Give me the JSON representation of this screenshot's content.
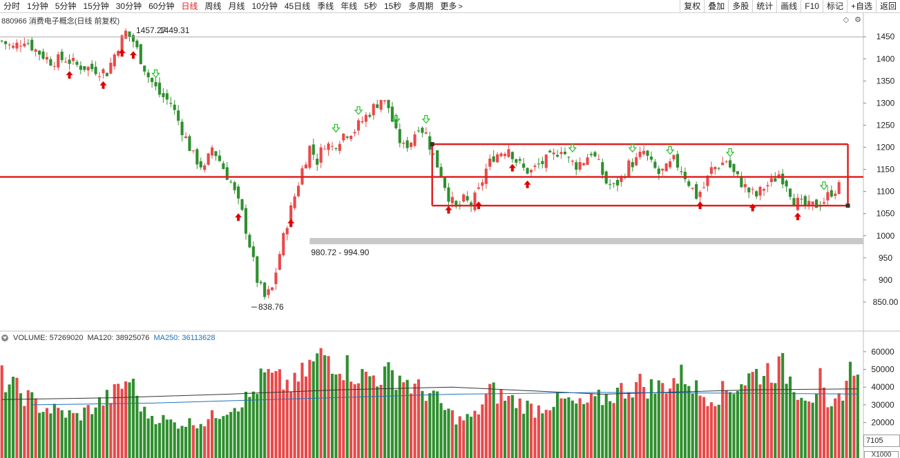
{
  "toolbar": {
    "periods": [
      {
        "label": "分时"
      },
      {
        "label": "1分钟"
      },
      {
        "label": "5分钟"
      },
      {
        "label": "15分钟"
      },
      {
        "label": "30分钟"
      },
      {
        "label": "60分钟"
      },
      {
        "label": "日线"
      },
      {
        "label": "周线"
      },
      {
        "label": "月线"
      },
      {
        "label": "10分钟"
      },
      {
        "label": "45日线"
      },
      {
        "label": "季线"
      },
      {
        "label": "年线"
      },
      {
        "label": "5秒"
      },
      {
        "label": "15秒"
      },
      {
        "label": "多周期"
      },
      {
        "label": "更多"
      }
    ],
    "active_period": "日线",
    "buttons": [
      "复权",
      "叠加",
      "多股",
      "统计",
      "画线",
      "F10",
      "标记",
      "+自选",
      "返回"
    ]
  },
  "price_panel": {
    "title": "880966 消费电子概念(日线 前复权)",
    "high_label": "1457.27",
    "high_label2": "1449.31",
    "low_label": "838.76",
    "gap_label": "980.72 - 994.90"
  },
  "volume_panel": {
    "volume_text": "VOLUME: 57269020",
    "ma120_text": "MA120: 38925076",
    "ma250_text": "MA250: 36113628",
    "readout": "7105",
    "unit": "X1000"
  },
  "colors": {
    "up": "#e84a4a",
    "down": "#2f8f2f",
    "trendline": "#e02020",
    "ma120": "#333333",
    "ma250": "#1f70b8",
    "gap_band": "#c8c8c8"
  },
  "chart_data": {
    "type": "candlestick",
    "price_axis": {
      "min": 800,
      "max": 1480,
      "ticks": [
        1450,
        1400,
        1350,
        1300,
        1250,
        1200,
        1150,
        1100,
        1050,
        1000,
        950,
        900,
        850
      ],
      "tick_labels": [
        "1450",
        "1400",
        "1350",
        "1300",
        "1250",
        "1200",
        "1150",
        "1100",
        "1050",
        "1000",
        "950",
        "900",
        "850.00"
      ]
    },
    "volume_axis": {
      "min": 0,
      "max": 65000,
      "ticks": [
        20000,
        30000,
        40000,
        50000,
        60000
      ],
      "tick_labels": [
        "20000",
        "30000",
        "40000",
        "50000",
        "60000"
      ]
    },
    "close_path": [
      [
        0,
        1440
      ],
      [
        3,
        1425
      ],
      [
        6,
        1445
      ],
      [
        9,
        1420
      ],
      [
        13,
        1395
      ],
      [
        17,
        1400
      ],
      [
        20,
        1385
      ],
      [
        24,
        1378
      ],
      [
        28,
        1370
      ],
      [
        31,
        1430
      ],
      [
        33,
        1460
      ],
      [
        35,
        1440
      ],
      [
        37,
        1400
      ],
      [
        39,
        1360
      ],
      [
        42,
        1320
      ],
      [
        45,
        1300
      ],
      [
        48,
        1240
      ],
      [
        51,
        1180
      ],
      [
        54,
        1150
      ],
      [
        56,
        1200
      ],
      [
        58,
        1170
      ],
      [
        61,
        1120
      ],
      [
        64,
        1050
      ],
      [
        66,
        980
      ],
      [
        68,
        900
      ],
      [
        70,
        860
      ],
      [
        72,
        880
      ],
      [
        74,
        960
      ],
      [
        76,
        1030
      ],
      [
        78,
        1090
      ],
      [
        80,
        1150
      ],
      [
        82,
        1200
      ],
      [
        84,
        1170
      ],
      [
        86,
        1210
      ],
      [
        88,
        1200
      ],
      [
        91,
        1230
      ],
      [
        94,
        1240
      ],
      [
        97,
        1270
      ],
      [
        99,
        1290
      ],
      [
        101,
        1310
      ],
      [
        103,
        1290
      ],
      [
        105,
        1230
      ],
      [
        107,
        1200
      ],
      [
        109,
        1215
      ],
      [
        111,
        1250
      ],
      [
        113,
        1230
      ],
      [
        115,
        1180
      ],
      [
        117,
        1140
      ],
      [
        119,
        1090
      ],
      [
        121,
        1060
      ],
      [
        123,
        1080
      ],
      [
        125,
        1070
      ],
      [
        127,
        1100
      ],
      [
        129,
        1150
      ],
      [
        131,
        1180
      ],
      [
        133,
        1190
      ],
      [
        135,
        1200
      ],
      [
        137,
        1170
      ],
      [
        139,
        1150
      ],
      [
        141,
        1145
      ],
      [
        143,
        1160
      ],
      [
        145,
        1170
      ],
      [
        147,
        1180
      ],
      [
        149,
        1200
      ],
      [
        151,
        1170
      ],
      [
        153,
        1160
      ],
      [
        155,
        1170
      ],
      [
        157,
        1190
      ],
      [
        159,
        1160
      ],
      [
        161,
        1120
      ],
      [
        163,
        1110
      ],
      [
        165,
        1130
      ],
      [
        167,
        1160
      ],
      [
        169,
        1170
      ],
      [
        171,
        1190
      ],
      [
        173,
        1160
      ],
      [
        175,
        1140
      ],
      [
        177,
        1150
      ],
      [
        179,
        1170
      ],
      [
        181,
        1150
      ],
      [
        183,
        1120
      ],
      [
        185,
        1090
      ],
      [
        187,
        1110
      ],
      [
        189,
        1150
      ],
      [
        191,
        1160
      ],
      [
        193,
        1170
      ],
      [
        195,
        1140
      ],
      [
        197,
        1120
      ],
      [
        199,
        1100
      ],
      [
        201,
        1090
      ],
      [
        203,
        1110
      ],
      [
        205,
        1120
      ],
      [
        207,
        1140
      ],
      [
        209,
        1120
      ],
      [
        211,
        1080
      ],
      [
        213,
        1070
      ],
      [
        215,
        1065
      ],
      [
        217,
        1070
      ],
      [
        219,
        1080
      ],
      [
        221,
        1100
      ],
      [
        223,
        1110
      ]
    ],
    "volume_path": [
      [
        0,
        46000
      ],
      [
        10,
        30000
      ],
      [
        20,
        24000
      ],
      [
        30,
        37000
      ],
      [
        34,
        46000
      ],
      [
        38,
        26000
      ],
      [
        46,
        20000
      ],
      [
        54,
        21000
      ],
      [
        60,
        29000
      ],
      [
        66,
        35000
      ],
      [
        70,
        48000
      ],
      [
        74,
        44000
      ],
      [
        78,
        42000
      ],
      [
        82,
        53000
      ],
      [
        86,
        60000
      ],
      [
        90,
        55000
      ],
      [
        96,
        47000
      ],
      [
        102,
        48000
      ],
      [
        106,
        48000
      ],
      [
        110,
        40000
      ],
      [
        114,
        38000
      ],
      [
        118,
        28000
      ],
      [
        122,
        22000
      ],
      [
        126,
        24000
      ],
      [
        130,
        39000
      ],
      [
        134,
        35000
      ],
      [
        138,
        32000
      ],
      [
        142,
        28000
      ],
      [
        146,
        32000
      ],
      [
        150,
        33000
      ],
      [
        154,
        30000
      ],
      [
        158,
        33000
      ],
      [
        162,
        36000
      ],
      [
        166,
        40000
      ],
      [
        170,
        43000
      ],
      [
        174,
        40000
      ],
      [
        178,
        44000
      ],
      [
        182,
        48000
      ],
      [
        186,
        37000
      ],
      [
        190,
        36000
      ],
      [
        194,
        40000
      ],
      [
        200,
        48000
      ],
      [
        204,
        51000
      ],
      [
        208,
        52000
      ],
      [
        212,
        40000
      ],
      [
        216,
        36000
      ],
      [
        218,
        45000
      ],
      [
        220,
        25000
      ],
      [
        222,
        30000
      ],
      [
        226,
        50000
      ],
      [
        228,
        57000
      ]
    ],
    "ma120": [
      [
        0,
        33000
      ],
      [
        30,
        34000
      ],
      [
        60,
        36000
      ],
      [
        90,
        38500
      ],
      [
        120,
        40000
      ],
      [
        160,
        36000
      ],
      [
        200,
        38500
      ],
      [
        228,
        39000
      ]
    ],
    "ma250": [
      [
        8,
        30000
      ],
      [
        40,
        31000
      ],
      [
        80,
        33500
      ],
      [
        120,
        36000
      ],
      [
        160,
        37000
      ],
      [
        200,
        36500
      ],
      [
        228,
        36100
      ]
    ],
    "annotations": {
      "horizontal_line_price": 1133,
      "range_box": {
        "x_start": 115,
        "x_end": 225,
        "top_price": 1207,
        "bottom_price": 1068
      },
      "gap_band": {
        "low": 980.72,
        "high": 994.9
      },
      "high_price": 1457.27,
      "low_price": 838.76
    },
    "up_arrows": [
      18,
      27,
      32,
      35,
      63,
      77,
      119,
      127,
      136,
      140,
      186,
      200,
      212,
      232
    ],
    "down_arrows": [
      41,
      89,
      95,
      105,
      113,
      152,
      168,
      178,
      194,
      219
    ]
  }
}
